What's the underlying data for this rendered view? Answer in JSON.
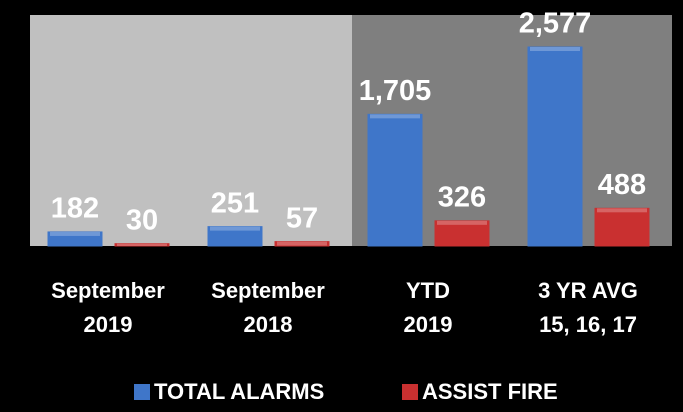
{
  "chart_data": {
    "type": "bar",
    "categories": [
      [
        "September",
        "2019"
      ],
      [
        "September",
        "2018"
      ],
      [
        "YTD",
        "2019"
      ],
      [
        "3 YR AVG",
        "15, 16, 17"
      ]
    ],
    "series": [
      {
        "name": "TOTAL ALARMS",
        "color": "#3f76c9",
        "values": [
          182,
          251,
          1705,
          2577
        ],
        "value_labels": [
          "182",
          "251",
          "1,705",
          "2,577"
        ]
      },
      {
        "name": "ASSIST FIRE",
        "color": "#c93030",
        "values": [
          30,
          57,
          326,
          488
        ]
      }
    ]
  }
}
